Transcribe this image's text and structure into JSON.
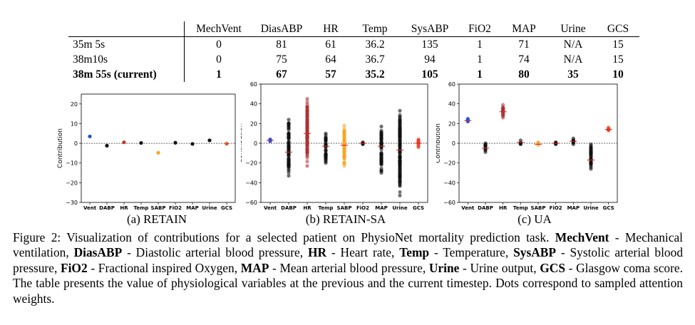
{
  "table": {
    "columns": [
      "MechVent",
      "DiasABP",
      "HR",
      "Temp",
      "SysABP",
      "FiO2",
      "MAP",
      "Urine",
      "GCS"
    ],
    "rows": [
      {
        "label": "35m 5s",
        "values": [
          "0",
          "81",
          "61",
          "36.2",
          "135",
          "1",
          "71",
          "N/A",
          "15"
        ]
      },
      {
        "label": "38m10s",
        "values": [
          "0",
          "75",
          "64",
          "36.7",
          "94",
          "1",
          "74",
          "N/A",
          "15"
        ]
      },
      {
        "label": "38m 55s (current)",
        "values": [
          "1",
          "67",
          "57",
          "35.2",
          "105",
          "1",
          "80",
          "35",
          "10"
        ]
      }
    ]
  },
  "subcaptions": [
    "(a) RETAIN",
    "(b) RETAIN-SA",
    "(c) UA"
  ],
  "caption": {
    "label": "Figure 2:",
    "intro": "Visualization of contributions for a selected patient on PhysioNet mortality prediction task.",
    "terms": [
      {
        "abbr": "MechVent",
        "def": "- Mechanical ventilation,"
      },
      {
        "abbr": "DiasABP",
        "def": "- Diastolic arterial blood pressure,"
      },
      {
        "abbr": "HR",
        "def": "- Heart rate,"
      },
      {
        "abbr": "Temp",
        "def": "- Temperature,"
      },
      {
        "abbr": "SysABP",
        "def": "- Systolic arterial blood pressure,"
      },
      {
        "abbr": "FiO2",
        "def": "- Fractional inspired Oxygen,"
      },
      {
        "abbr": "MAP",
        "def": "- Mean arterial blood pressure,"
      },
      {
        "abbr": "Urine",
        "def": "- Urine output,"
      },
      {
        "abbr": "GCS",
        "def": "- Glasgow coma score."
      }
    ],
    "outro": "The table presents the value of physiological variables at the previous and the current timestep. Dots correspond to sampled attention weights."
  },
  "chart_data": [
    {
      "type": "scatter",
      "ylabel": "Contribution",
      "ylim": [
        -30,
        25
      ],
      "yticks": [
        "20",
        "10",
        "0",
        "−10",
        "−20",
        "−30"
      ],
      "yticks_values": [
        20,
        10,
        0,
        -10,
        -20,
        -30
      ],
      "categories": [
        "Vent",
        "DABP",
        "HR",
        "Temp",
        "SABP",
        "FiO2",
        "MAP",
        "Urine",
        "GCS"
      ],
      "values": [
        3.5,
        -1.2,
        0.5,
        0.2,
        -4.8,
        0.3,
        -0.3,
        1.5,
        -0.2
      ],
      "colors": [
        "#1f4fe0",
        "#111111",
        "#c0392b",
        "#111111",
        "#f5a623",
        "#111111",
        "#111111",
        "#111111",
        "#e8502a"
      ],
      "zero_line": true
    },
    {
      "type": "scatter",
      "ylabel": "Contribution",
      "ylim": [
        -60,
        60
      ],
      "yticks": [
        "60",
        "40",
        "20",
        "0",
        "−20",
        "−40",
        "−60"
      ],
      "yticks_values": [
        60,
        40,
        20,
        0,
        -20,
        -40,
        -60
      ],
      "categories": [
        "Vent",
        "DABP",
        "HR",
        "Temp",
        "SABP",
        "FiO2",
        "MAP",
        "Urine",
        "GCS"
      ],
      "ranges": [
        [
          2,
          4
        ],
        [
          -33,
          24
        ],
        [
          -23,
          45
        ],
        [
          -20,
          10
        ],
        [
          -23,
          18
        ],
        [
          -1,
          1
        ],
        [
          -30,
          17
        ],
        [
          -53,
          33
        ],
        [
          -4,
          4
        ]
      ],
      "means": [
        3,
        -9,
        10,
        -3,
        -2,
        0,
        -3,
        -7,
        0
      ],
      "colors": [
        "#1f4fe0",
        "#111111",
        "#b03030",
        "#111111",
        "#f5a623",
        "#111111",
        "#111111",
        "#111111",
        "#e8402a"
      ],
      "zero_line": true
    },
    {
      "type": "scatter",
      "ylabel": "Contribution",
      "ylim": [
        -60,
        60
      ],
      "yticks": [
        "60",
        "40",
        "20",
        "0",
        "−20",
        "−40",
        "−60"
      ],
      "yticks_values": [
        60,
        40,
        20,
        0,
        -20,
        -40,
        -60
      ],
      "categories": [
        "Vent",
        "DABP",
        "HR",
        "Temp",
        "SABP",
        "FiO2",
        "MAP",
        "Urine",
        "GCS"
      ],
      "ranges": [
        [
          22,
          25
        ],
        [
          -9,
          0
        ],
        [
          26,
          39
        ],
        [
          -1,
          3
        ],
        [
          -2,
          1
        ],
        [
          -1,
          1
        ],
        [
          -1,
          5
        ],
        [
          -26,
          -1
        ],
        [
          13,
          16
        ]
      ],
      "means": [
        23,
        -5,
        32,
        1,
        -1,
        0,
        2,
        -17,
        14
      ],
      "colors": [
        "#1f4fe0",
        "#111111",
        "#b03030",
        "#111111",
        "#f5a623",
        "#111111",
        "#111111",
        "#111111",
        "#e8402a"
      ],
      "zero_line": true
    }
  ]
}
